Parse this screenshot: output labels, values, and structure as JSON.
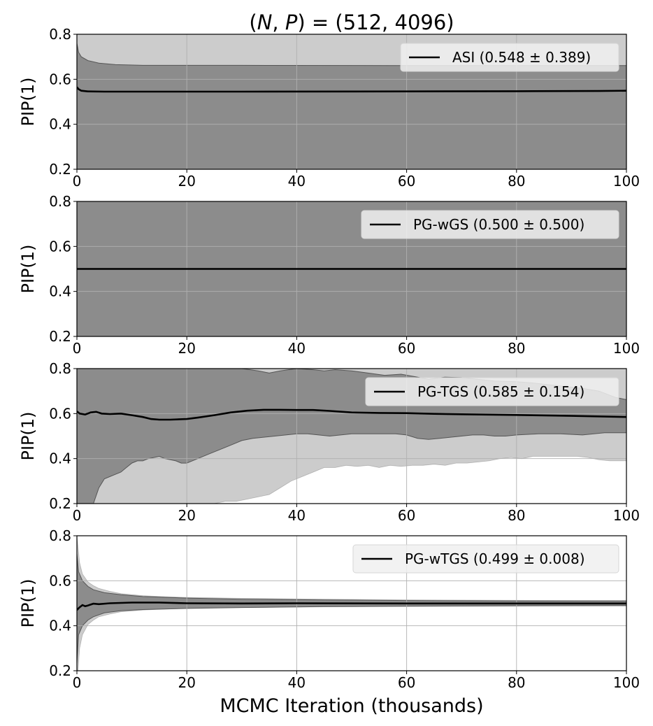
{
  "figure": {
    "title": "(N, P) = (512, 4096)",
    "title_parts": [
      "(",
      "N",
      ", ",
      "P",
      ") = (512, 4096)"
    ],
    "xlabel": "MCMC Iteration (thousands)"
  },
  "colors": {
    "outer_band": "#cccccc",
    "inner_band": "#8c8c8c",
    "band_edge": "#555555",
    "mean_line": "#000000",
    "grid": "#b0b0b0",
    "legend_bg": "#f0f0f0"
  },
  "chart_data": [
    {
      "type": "area",
      "ylabel": "PIP(1)",
      "xlim": [
        0,
        100
      ],
      "ylim": [
        0.2,
        0.8
      ],
      "xticks": [
        "0",
        "20",
        "40",
        "60",
        "80",
        "100"
      ],
      "yticks": [
        "0.2",
        "0.4",
        "0.6",
        "0.8"
      ],
      "grid": true,
      "legend_position": "top-right",
      "series": [
        {
          "name": "ASI (0.548 ± 0.389)"
        }
      ],
      "mean": [
        [
          0,
          0.565
        ],
        [
          0.3,
          0.556
        ],
        [
          0.8,
          0.549
        ],
        [
          2,
          0.546
        ],
        [
          5,
          0.545
        ],
        [
          10,
          0.545
        ],
        [
          30,
          0.545
        ],
        [
          60,
          0.546
        ],
        [
          80,
          0.547
        ],
        [
          95,
          0.548
        ],
        [
          100,
          0.549
        ]
      ],
      "inner_upper": [
        [
          0,
          0.76
        ],
        [
          0.3,
          0.72
        ],
        [
          0.8,
          0.7
        ],
        [
          2,
          0.683
        ],
        [
          4,
          0.672
        ],
        [
          7,
          0.665
        ],
        [
          12,
          0.662
        ],
        [
          30,
          0.662
        ],
        [
          60,
          0.661
        ],
        [
          100,
          0.661
        ]
      ],
      "inner_lower": [
        [
          0,
          0.2
        ],
        [
          100,
          0.2
        ]
      ],
      "outer_upper": [
        [
          0,
          0.8
        ],
        [
          100,
          0.8
        ]
      ],
      "outer_lower": [
        [
          0,
          0.2
        ],
        [
          100,
          0.2
        ]
      ]
    },
    {
      "type": "area",
      "ylabel": "PIP(1)",
      "xlim": [
        0,
        100
      ],
      "ylim": [
        0.2,
        0.8
      ],
      "xticks": [
        "0",
        "20",
        "40",
        "60",
        "80",
        "100"
      ],
      "yticks": [
        "0.2",
        "0.4",
        "0.6",
        "0.8"
      ],
      "grid": true,
      "legend_position": "top-right",
      "series": [
        {
          "name": "PG-wGS (0.500 ± 0.500)"
        }
      ],
      "mean": [
        [
          0,
          0.5
        ],
        [
          100,
          0.5
        ]
      ],
      "inner_upper": [
        [
          0,
          0.8
        ],
        [
          100,
          0.8
        ]
      ],
      "inner_lower": [
        [
          0,
          0.2
        ],
        [
          100,
          0.2
        ]
      ],
      "outer_upper": [
        [
          0,
          0.8
        ],
        [
          100,
          0.8
        ]
      ],
      "outer_lower": [
        [
          0,
          0.2
        ],
        [
          100,
          0.2
        ]
      ]
    },
    {
      "type": "area",
      "ylabel": "PIP(1)",
      "xlim": [
        0,
        100
      ],
      "ylim": [
        0.2,
        0.8
      ],
      "xticks": [
        "0",
        "20",
        "40",
        "60",
        "80",
        "100"
      ],
      "yticks": [
        "0.2",
        "0.4",
        "0.6",
        "0.8"
      ],
      "grid": true,
      "legend_position": "top-right",
      "series": [
        {
          "name": "PG-TGS (0.585 ± 0.154)"
        }
      ],
      "mean": [
        [
          0,
          0.61
        ],
        [
          0.5,
          0.6
        ],
        [
          1.5,
          0.596
        ],
        [
          2.5,
          0.605
        ],
        [
          3.5,
          0.608
        ],
        [
          4.5,
          0.6
        ],
        [
          6,
          0.598
        ],
        [
          8,
          0.6
        ],
        [
          10,
          0.593
        ],
        [
          12,
          0.585
        ],
        [
          13.5,
          0.576
        ],
        [
          15,
          0.573
        ],
        [
          17,
          0.573
        ],
        [
          20,
          0.576
        ],
        [
          22,
          0.582
        ],
        [
          25,
          0.593
        ],
        [
          28,
          0.605
        ],
        [
          31,
          0.613
        ],
        [
          34,
          0.617
        ],
        [
          37,
          0.617
        ],
        [
          40,
          0.616
        ],
        [
          43,
          0.616
        ],
        [
          46,
          0.612
        ],
        [
          50,
          0.605
        ],
        [
          55,
          0.603
        ],
        [
          60,
          0.602
        ],
        [
          65,
          0.599
        ],
        [
          70,
          0.597
        ],
        [
          80,
          0.594
        ],
        [
          90,
          0.59
        ],
        [
          100,
          0.585
        ]
      ],
      "inner_upper": [
        [
          0,
          0.8
        ],
        [
          30,
          0.8
        ],
        [
          33,
          0.79
        ],
        [
          35,
          0.78
        ],
        [
          37,
          0.79
        ],
        [
          40,
          0.8
        ],
        [
          43,
          0.795
        ],
        [
          45,
          0.79
        ],
        [
          47,
          0.795
        ],
        [
          50,
          0.79
        ],
        [
          53,
          0.78
        ],
        [
          56,
          0.77
        ],
        [
          59,
          0.775
        ],
        [
          62,
          0.762
        ],
        [
          64,
          0.752
        ],
        [
          67,
          0.762
        ],
        [
          70,
          0.76
        ],
        [
          73,
          0.752
        ],
        [
          76,
          0.745
        ],
        [
          80,
          0.742
        ],
        [
          83,
          0.736
        ],
        [
          86,
          0.728
        ],
        [
          89,
          0.72
        ],
        [
          92,
          0.712
        ],
        [
          95,
          0.7
        ],
        [
          98,
          0.672
        ],
        [
          100,
          0.662
        ]
      ],
      "inner_lower": [
        [
          0,
          0.2
        ],
        [
          3,
          0.2
        ],
        [
          4,
          0.27
        ],
        [
          5,
          0.31
        ],
        [
          6,
          0.32
        ],
        [
          7,
          0.33
        ],
        [
          8,
          0.34
        ],
        [
          9,
          0.36
        ],
        [
          10,
          0.38
        ],
        [
          11,
          0.39
        ],
        [
          12,
          0.39
        ],
        [
          13,
          0.4
        ],
        [
          15,
          0.41
        ],
        [
          16,
          0.4
        ],
        [
          18,
          0.39
        ],
        [
          19,
          0.38
        ],
        [
          20,
          0.38
        ],
        [
          22,
          0.4
        ],
        [
          24,
          0.42
        ],
        [
          26,
          0.44
        ],
        [
          28,
          0.46
        ],
        [
          30,
          0.48
        ],
        [
          32,
          0.49
        ],
        [
          34,
          0.495
        ],
        [
          36,
          0.5
        ],
        [
          38,
          0.505
        ],
        [
          40,
          0.51
        ],
        [
          42,
          0.51
        ],
        [
          44,
          0.505
        ],
        [
          46,
          0.5
        ],
        [
          48,
          0.505
        ],
        [
          50,
          0.51
        ],
        [
          52,
          0.51
        ],
        [
          54,
          0.51
        ],
        [
          56,
          0.51
        ],
        [
          58,
          0.51
        ],
        [
          60,
          0.505
        ],
        [
          62,
          0.49
        ],
        [
          64,
          0.485
        ],
        [
          66,
          0.49
        ],
        [
          68,
          0.495
        ],
        [
          70,
          0.5
        ],
        [
          72,
          0.505
        ],
        [
          74,
          0.505
        ],
        [
          76,
          0.5
        ],
        [
          78,
          0.5
        ],
        [
          80,
          0.505
        ],
        [
          84,
          0.51
        ],
        [
          88,
          0.51
        ],
        [
          92,
          0.505
        ],
        [
          96,
          0.515
        ],
        [
          100,
          0.515
        ]
      ],
      "outer_upper": [
        [
          0,
          0.8
        ],
        [
          100,
          0.8
        ]
      ],
      "outer_lower": [
        [
          0,
          0.2
        ],
        [
          25,
          0.2
        ],
        [
          27,
          0.21
        ],
        [
          29,
          0.21
        ],
        [
          31,
          0.22
        ],
        [
          33,
          0.23
        ],
        [
          35,
          0.24
        ],
        [
          37,
          0.27
        ],
        [
          39,
          0.3
        ],
        [
          41,
          0.32
        ],
        [
          43,
          0.34
        ],
        [
          45,
          0.36
        ],
        [
          47,
          0.36
        ],
        [
          49,
          0.37
        ],
        [
          51,
          0.365
        ],
        [
          53,
          0.37
        ],
        [
          55,
          0.36
        ],
        [
          57,
          0.37
        ],
        [
          59,
          0.365
        ],
        [
          61,
          0.37
        ],
        [
          63,
          0.37
        ],
        [
          65,
          0.375
        ],
        [
          67,
          0.37
        ],
        [
          69,
          0.38
        ],
        [
          71,
          0.38
        ],
        [
          73,
          0.385
        ],
        [
          75,
          0.39
        ],
        [
          77,
          0.4
        ],
        [
          79,
          0.405
        ],
        [
          81,
          0.4
        ],
        [
          83,
          0.41
        ],
        [
          85,
          0.41
        ],
        [
          87,
          0.41
        ],
        [
          89,
          0.41
        ],
        [
          91,
          0.41
        ],
        [
          93,
          0.405
        ],
        [
          95,
          0.395
        ],
        [
          97,
          0.39
        ],
        [
          100,
          0.39
        ]
      ]
    },
    {
      "type": "area",
      "ylabel": "PIP(1)",
      "xlim": [
        0,
        100
      ],
      "ylim": [
        0.2,
        0.8
      ],
      "xticks": [
        "0",
        "20",
        "40",
        "60",
        "80",
        "100"
      ],
      "yticks": [
        "0.2",
        "0.4",
        "0.6",
        "0.8"
      ],
      "grid": true,
      "legend_position": "top-right",
      "series": [
        {
          "name": "PG-wTGS (0.499 ± 0.008)"
        }
      ],
      "mean": [
        [
          0,
          0.47
        ],
        [
          0.4,
          0.48
        ],
        [
          1,
          0.492
        ],
        [
          1.5,
          0.487
        ],
        [
          2,
          0.49
        ],
        [
          3,
          0.498
        ],
        [
          4,
          0.496
        ],
        [
          6,
          0.5
        ],
        [
          10,
          0.503
        ],
        [
          15,
          0.503
        ],
        [
          20,
          0.5
        ],
        [
          30,
          0.499
        ],
        [
          40,
          0.5
        ],
        [
          60,
          0.499
        ],
        [
          80,
          0.499
        ],
        [
          100,
          0.499
        ]
      ],
      "inner_upper": [
        [
          0,
          0.72
        ],
        [
          0.3,
          0.64
        ],
        [
          1,
          0.6
        ],
        [
          2,
          0.575
        ],
        [
          3,
          0.56
        ],
        [
          5,
          0.547
        ],
        [
          8,
          0.538
        ],
        [
          12,
          0.53
        ],
        [
          20,
          0.523
        ],
        [
          30,
          0.518
        ],
        [
          45,
          0.515
        ],
        [
          60,
          0.512
        ],
        [
          80,
          0.51
        ],
        [
          100,
          0.51
        ]
      ],
      "inner_lower": [
        [
          0,
          0.23
        ],
        [
          0.3,
          0.36
        ],
        [
          1,
          0.4
        ],
        [
          2,
          0.425
        ],
        [
          3,
          0.44
        ],
        [
          5,
          0.457
        ],
        [
          8,
          0.467
        ],
        [
          12,
          0.472
        ],
        [
          20,
          0.477
        ],
        [
          30,
          0.481
        ],
        [
          45,
          0.485
        ],
        [
          60,
          0.487
        ],
        [
          80,
          0.489
        ],
        [
          100,
          0.49
        ]
      ],
      "outer_upper": [
        [
          0,
          0.8
        ],
        [
          0.2,
          0.75
        ],
        [
          0.5,
          0.68
        ],
        [
          1,
          0.63
        ],
        [
          2,
          0.595
        ],
        [
          3,
          0.578
        ],
        [
          4,
          0.566
        ],
        [
          6,
          0.553
        ],
        [
          8,
          0.543
        ],
        [
          12,
          0.534
        ],
        [
          16,
          0.529
        ],
        [
          20,
          0.526
        ],
        [
          30,
          0.522
        ],
        [
          45,
          0.518
        ],
        [
          60,
          0.515
        ],
        [
          80,
          0.513
        ],
        [
          100,
          0.512
        ]
      ],
      "outer_lower": [
        [
          0,
          0.2
        ],
        [
          0.2,
          0.2
        ],
        [
          0.5,
          0.3
        ],
        [
          1,
          0.36
        ],
        [
          2,
          0.405
        ],
        [
          3,
          0.425
        ],
        [
          4,
          0.44
        ],
        [
          6,
          0.452
        ],
        [
          8,
          0.462
        ],
        [
          12,
          0.47
        ],
        [
          16,
          0.474
        ],
        [
          20,
          0.478
        ],
        [
          30,
          0.481
        ],
        [
          45,
          0.484
        ],
        [
          60,
          0.486
        ],
        [
          80,
          0.487
        ],
        [
          100,
          0.488
        ]
      ]
    }
  ]
}
